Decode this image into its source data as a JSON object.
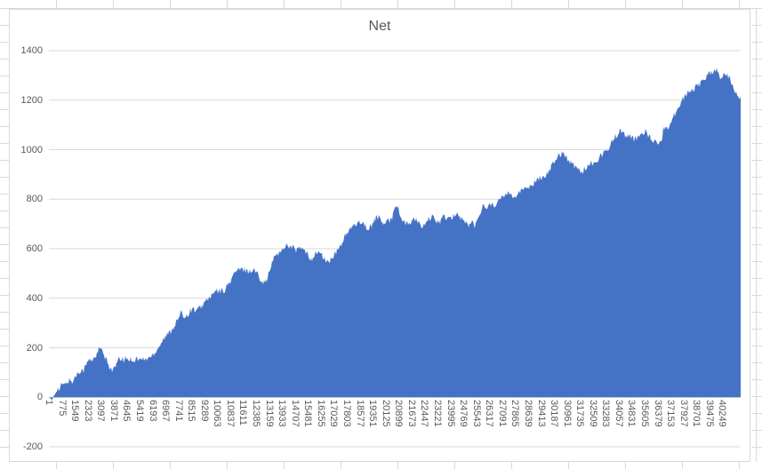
{
  "style": {
    "area_color": "#4472C4",
    "grid_color": "#D9D9D9",
    "axis_text_color": "#595959",
    "title_color": "#595959",
    "chart_border_color": "#D9D9D9",
    "sheet_grid_color": "#D9D9D9"
  },
  "chart_data": {
    "type": "area",
    "title": "Net",
    "xlabel": "",
    "ylabel": "",
    "ylim": [
      -200,
      1400
    ],
    "y_tick_step": 200,
    "y_ticks": [
      1400,
      1200,
      1000,
      800,
      600,
      400,
      200,
      0,
      -200
    ],
    "x_tick_interval": 774,
    "x_tick_labels": [
      "1",
      "775",
      "1549",
      "2323",
      "3097",
      "3871",
      "4645",
      "5419",
      "6193",
      "6967",
      "7741",
      "8515",
      "9289",
      "10063",
      "10837",
      "11611",
      "12385",
      "13159",
      "13933",
      "14707",
      "15481",
      "16255",
      "17029",
      "17803",
      "18577",
      "19351",
      "20125",
      "20899",
      "21673",
      "22447",
      "23221",
      "23995",
      "24769",
      "25543",
      "26317",
      "27091",
      "27865",
      "28639",
      "29413",
      "30187",
      "30961",
      "31735",
      "32509",
      "33283",
      "34057",
      "34831",
      "35605",
      "36379",
      "37153",
      "37927",
      "38701",
      "39475",
      "40249"
    ],
    "grid": true,
    "legend_position": "none",
    "x_start": 1,
    "x_step": 159,
    "series": [
      {
        "name": "Net",
        "color": "#4472C4",
        "values": [
          0,
          -20,
          12,
          35,
          30,
          55,
          48,
          65,
          68,
          62,
          85,
          100,
          112,
          108,
          130,
          152,
          145,
          163,
          172,
          200,
          185,
          160,
          140,
          120,
          110,
          122,
          148,
          155,
          150,
          158,
          152,
          155,
          148,
          158,
          150,
          156,
          150,
          158,
          162,
          170,
          185,
          200,
          218,
          235,
          245,
          258,
          270,
          288,
          305,
          325,
          342,
          325,
          332,
          348,
          360,
          350,
          352,
          364,
          375,
          388,
          400,
          408,
          420,
          430,
          425,
          430,
          432,
          450,
          464,
          488,
          504,
          515,
          514,
          515,
          516,
          508,
          510,
          515,
          505,
          488,
          473,
          462,
          478,
          510,
          545,
          572,
          584,
          582,
          600,
          615,
          616,
          605,
          604,
          595,
          599,
          602,
          591,
          578,
          560,
          562,
          575,
          590,
          581,
          565,
          554,
          545,
          556,
          568,
          583,
          602,
          620,
          645,
          663,
          675,
          684,
          695,
          710,
          710,
          703,
          695,
          673,
          688,
          710,
          728,
          724,
          712,
          699,
          705,
          715,
          725,
          775,
          775,
          735,
          710,
          703,
          698,
          706,
          715,
          719,
          705,
          686,
          690,
          703,
          725,
          726,
          718,
          710,
          710,
          730,
          728,
          716,
          720,
          730,
          748,
          734,
          722,
          711,
          700,
          695,
          712,
          688,
          712,
          749,
          770,
          766,
          770,
          778,
          786,
          765,
          790,
          805,
          815,
          824,
          833,
          818,
          808,
          818,
          830,
          838,
          845,
          851,
          855,
          861,
          872,
          881,
          888,
          894,
          902,
          914,
          935,
          955,
          970,
          981,
          990,
          980,
          962,
          951,
          940,
          930,
          920,
          913,
          918,
          928,
          938,
          948,
          948,
          958,
          970,
          981,
          992,
          1005,
          1020,
          1040,
          1055,
          1066,
          1078,
          1065,
          1052,
          1051,
          1048,
          1040,
          1045,
          1056,
          1068,
          1074,
          1065,
          1050,
          1035,
          1029,
          1025,
          1028,
          1085,
          1091,
          1095,
          1117,
          1140,
          1162,
          1185,
          1200,
          1215,
          1228,
          1238,
          1245,
          1252,
          1256,
          1270,
          1282,
          1295,
          1307,
          1315,
          1321,
          1318,
          1295,
          1290,
          1312,
          1300,
          1283,
          1258,
          1235,
          1216,
          1212
        ]
      }
    ]
  }
}
